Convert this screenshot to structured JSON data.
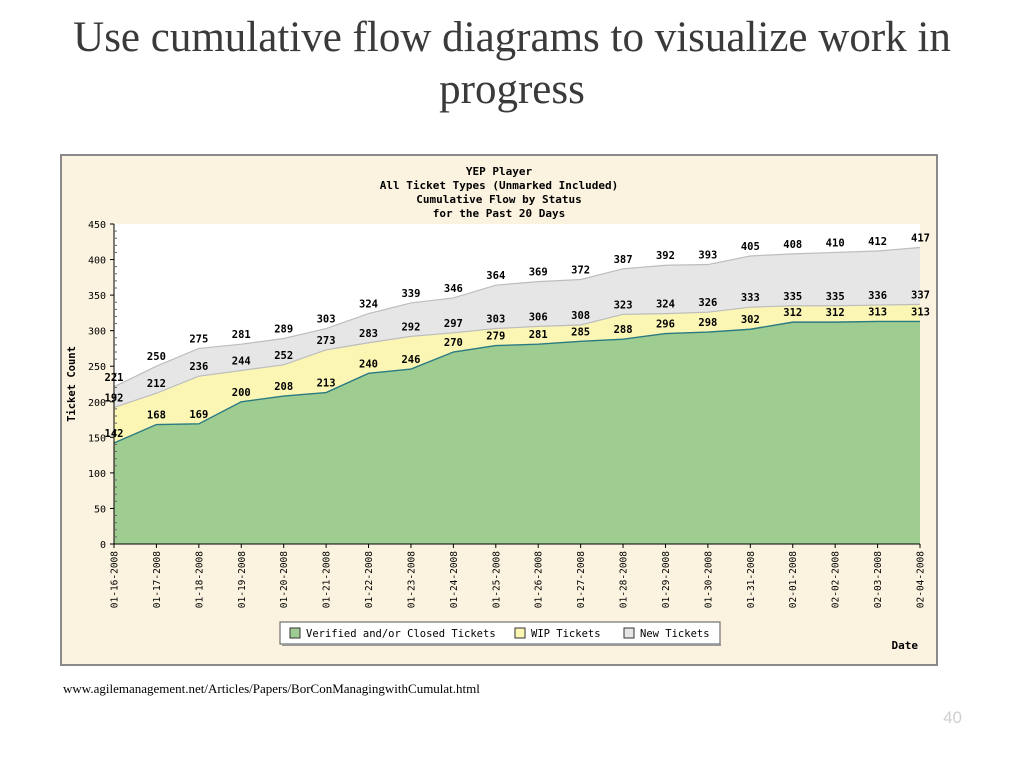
{
  "slide": {
    "title": "Use cumulative flow diagrams to visualize work in progress",
    "source": "www.agilemanagement.net/Articles/Papers/BorConManagingwithCumulat.html",
    "page_number": "40"
  },
  "colors": {
    "frame_bg": "#fbf3df",
    "plot_bg": "#ffffff",
    "verified": "#9fcc90",
    "verified_line": "#2a7a82",
    "wip": "#fbf6b4",
    "new": "#e6e6e6",
    "boundary_line": "#bdbdbd"
  },
  "chart_data": {
    "type": "area",
    "stacked": true,
    "title_lines": [
      "YEP Player",
      "All Ticket Types (Unmarked Included)",
      "Cumulative Flow by Status",
      "for the Past 20 Days"
    ],
    "xlabel": "Date",
    "ylabel": "Ticket Count",
    "ylim": [
      0,
      450
    ],
    "yticks": [
      0,
      50,
      100,
      150,
      200,
      250,
      300,
      350,
      400,
      450
    ],
    "categories": [
      "01-16-2008",
      "01-17-2008",
      "01-18-2008",
      "01-19-2008",
      "01-20-2008",
      "01-21-2008",
      "01-22-2008",
      "01-23-2008",
      "01-24-2008",
      "01-25-2008",
      "01-26-2008",
      "01-27-2008",
      "01-28-2008",
      "01-29-2008",
      "01-30-2008",
      "01-31-2008",
      "02-01-2008",
      "02-02-2008",
      "02-03-2008",
      "02-04-2008"
    ],
    "series": [
      {
        "name": "Verified and/or Closed Tickets",
        "key": "verified",
        "cumulative_values": [
          142,
          168,
          169,
          200,
          208,
          213,
          240,
          246,
          270,
          279,
          281,
          285,
          288,
          296,
          298,
          302,
          312,
          312,
          313,
          313
        ]
      },
      {
        "name": "WIP Tickets",
        "key": "wip",
        "cumulative_values": [
          192,
          212,
          236,
          244,
          252,
          273,
          283,
          292,
          297,
          303,
          306,
          308,
          323,
          324,
          326,
          333,
          335,
          335,
          336,
          337
        ]
      },
      {
        "name": "New Tickets",
        "key": "new",
        "cumulative_values": [
          221,
          250,
          275,
          281,
          289,
          303,
          324,
          339,
          346,
          364,
          369,
          372,
          387,
          392,
          393,
          405,
          408,
          410,
          412,
          417
        ]
      }
    ],
    "legend_position": "bottom",
    "grid": false
  }
}
